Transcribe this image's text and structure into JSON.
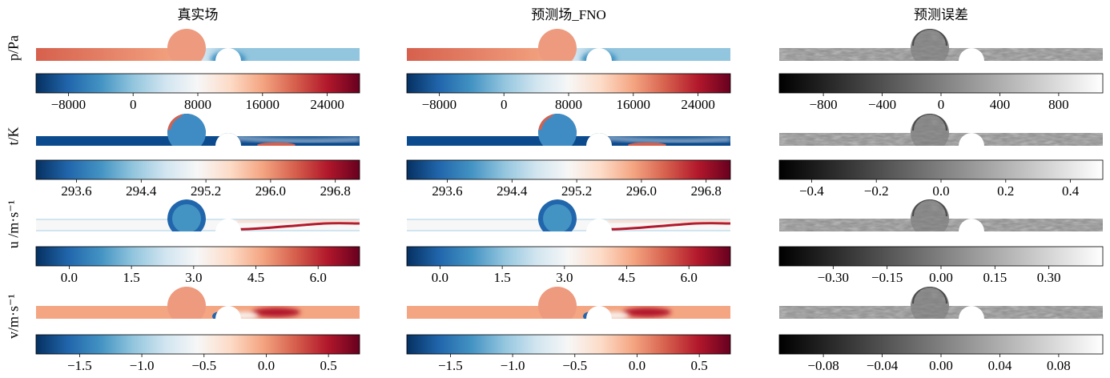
{
  "columns": [
    "真实场",
    "预测场_FNO",
    "预测误差"
  ],
  "rows": [
    "p/Pa",
    "t/K",
    "u /m·s⁻¹",
    "v/m·s⁻¹"
  ],
  "colors": {
    "cmap_field": [
      "#053061",
      "#2166ac",
      "#4393c3",
      "#92c5de",
      "#d1e5f0",
      "#f7f7f7",
      "#fddbc7",
      "#f4a582",
      "#d6604d",
      "#b2182b",
      "#67001f"
    ],
    "cmap_error": [
      "#000000",
      "#ffffff"
    ]
  },
  "chart_data": [
    {
      "type": "heatmap",
      "row": "p/Pa",
      "column": "真实场",
      "colorbar_ticks": [
        "−8000",
        "0",
        "8000",
        "16000",
        "24000"
      ],
      "range": [
        -12000,
        28000
      ]
    },
    {
      "type": "heatmap",
      "row": "p/Pa",
      "column": "预测场_FNO",
      "colorbar_ticks": [
        "−8000",
        "0",
        "8000",
        "16000",
        "24000"
      ],
      "range": [
        -12000,
        28000
      ]
    },
    {
      "type": "heatmap",
      "row": "p/Pa",
      "column": "预测误差",
      "colorbar_ticks": [
        "−800",
        "−400",
        "0",
        "400",
        "800"
      ],
      "range": [
        -1100,
        1100
      ]
    },
    {
      "type": "heatmap",
      "row": "t/K",
      "column": "真实场",
      "colorbar_ticks": [
        "293.6",
        "294.4",
        "295.2",
        "296.0",
        "296.8"
      ],
      "range": [
        293.1,
        297.1
      ]
    },
    {
      "type": "heatmap",
      "row": "t/K",
      "column": "预测场_FNO",
      "colorbar_ticks": [
        "293.6",
        "294.4",
        "295.2",
        "296.0",
        "296.8"
      ],
      "range": [
        293.1,
        297.1
      ]
    },
    {
      "type": "heatmap",
      "row": "t/K",
      "column": "预测误差",
      "colorbar_ticks": [
        "−0.4",
        "−0.2",
        "0.0",
        "0.2",
        "0.4"
      ],
      "range": [
        -0.5,
        0.5
      ]
    },
    {
      "type": "heatmap",
      "row": "u /m·s⁻¹",
      "column": "真实场",
      "colorbar_ticks": [
        "0.0",
        "1.5",
        "3.0",
        "4.5",
        "6.0"
      ],
      "range": [
        -0.8,
        7.0
      ]
    },
    {
      "type": "heatmap",
      "row": "u /m·s⁻¹",
      "column": "预测场_FNO",
      "colorbar_ticks": [
        "0.0",
        "1.5",
        "3.0",
        "4.5",
        "6.0"
      ],
      "range": [
        -0.8,
        7.0
      ]
    },
    {
      "type": "heatmap",
      "row": "u /m·s⁻¹",
      "column": "预测误差",
      "colorbar_ticks": [
        "−0.30",
        "−0.15",
        "0.00",
        "0.15",
        "0.30"
      ],
      "range": [
        -0.45,
        0.45
      ]
    },
    {
      "type": "heatmap",
      "row": "v/m·s⁻¹",
      "column": "真实场",
      "colorbar_ticks": [
        "−1.5",
        "−1.0",
        "−0.5",
        "0.0",
        "0.5"
      ],
      "range": [
        -1.85,
        0.75
      ]
    },
    {
      "type": "heatmap",
      "row": "v/m·s⁻¹",
      "column": "预测场_FNO",
      "colorbar_ticks": [
        "−1.5",
        "−1.0",
        "−0.5",
        "0.0",
        "0.5"
      ],
      "range": [
        -1.85,
        0.75
      ]
    },
    {
      "type": "heatmap",
      "row": "v/m·s⁻¹",
      "column": "预测误差",
      "colorbar_ticks": [
        "−0.08",
        "−0.04",
        "0.00",
        "0.04",
        "0.08"
      ],
      "range": [
        -0.11,
        0.11
      ]
    }
  ]
}
